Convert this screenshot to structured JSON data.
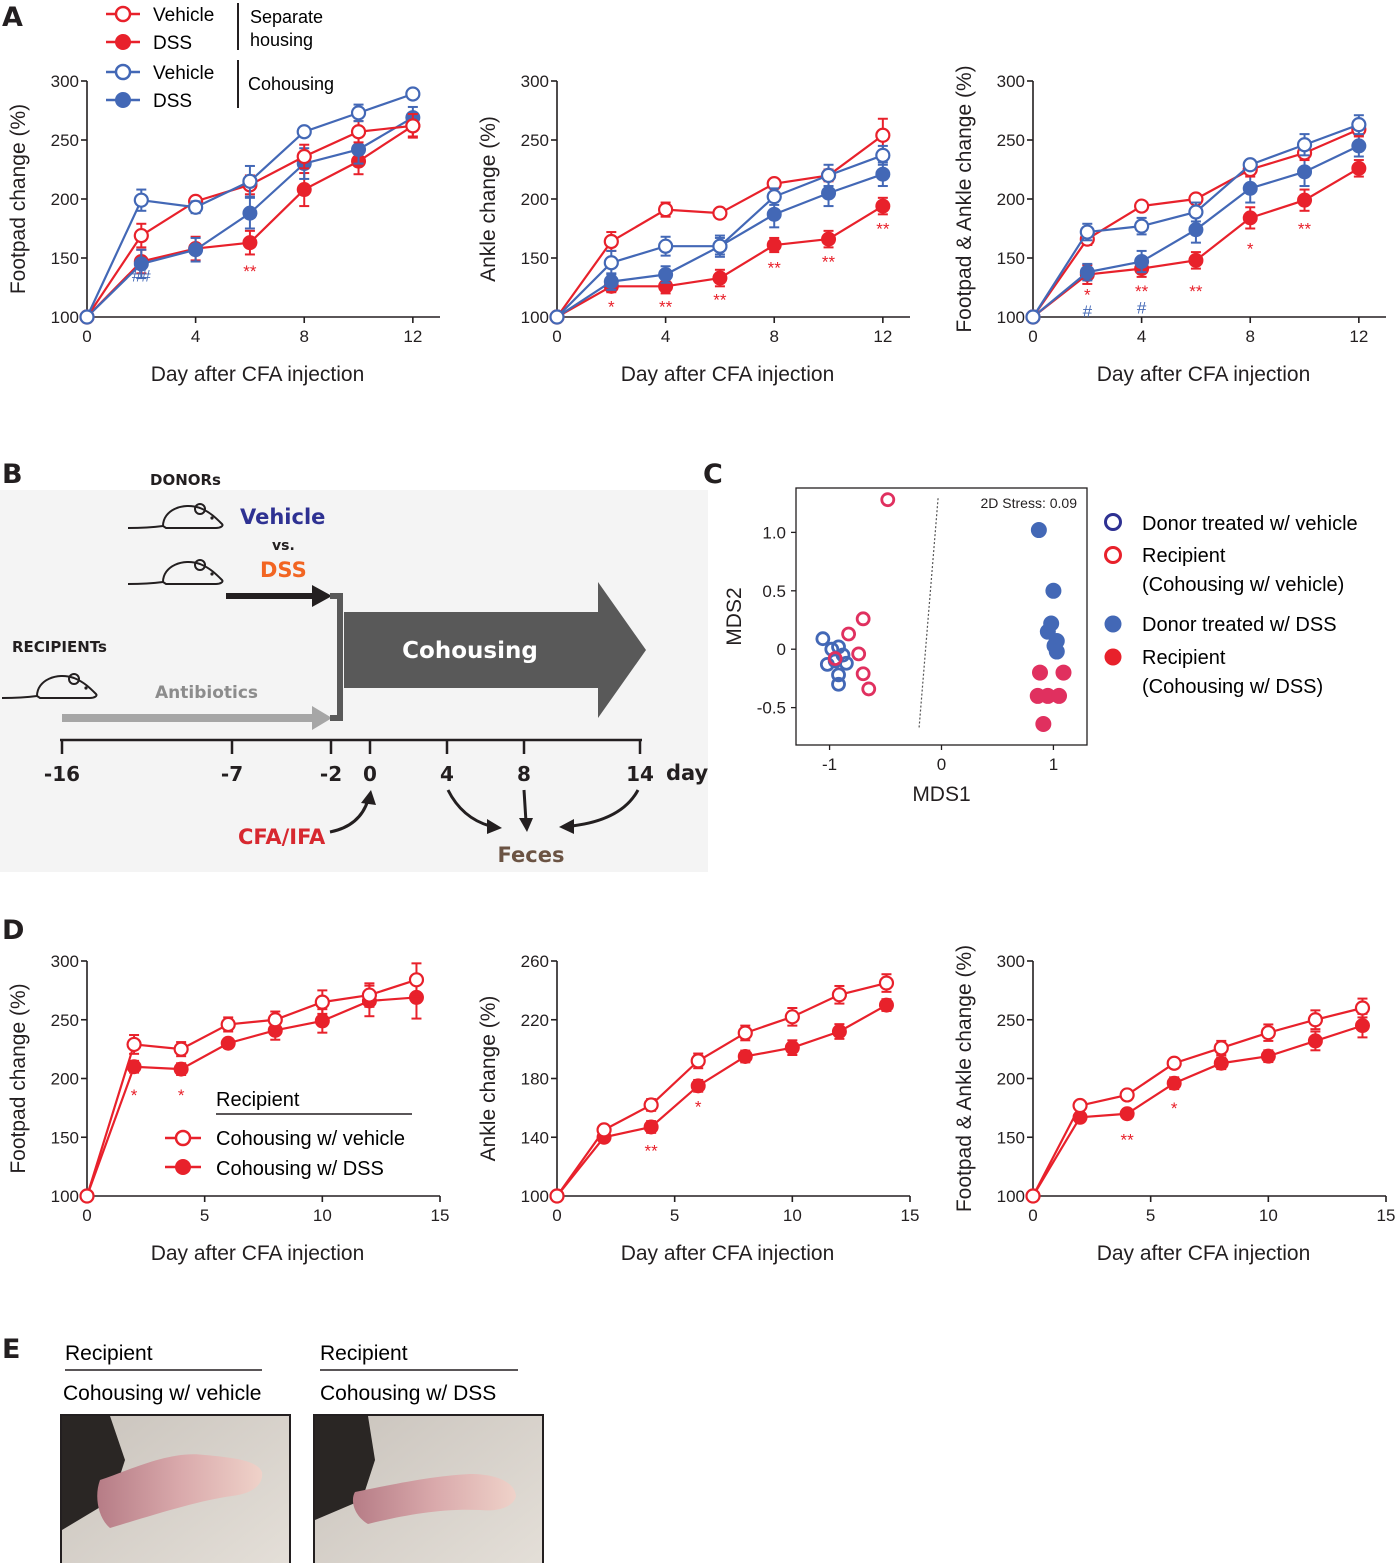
{
  "colors": {
    "red": "#e8212b",
    "blue": "#4368b6",
    "black": "#231f20",
    "grey": "#9a9a9a",
    "dark": "#595959",
    "panel_bg": "#f4f4f4",
    "donor_blue": "#2e3192",
    "dss_orange": "#f26522",
    "cfa_red": "#d7282f",
    "feces_brown": "#6b5343",
    "pink": "#e0305f"
  },
  "panel_labels": {
    "A": "A",
    "B": "B",
    "C": "C",
    "D": "D",
    "E": "E"
  },
  "chart_data": [
    {
      "id": "A1",
      "type": "line",
      "ylabel": "Footpad change (%)",
      "xlabel": "Day after CFA injection",
      "xlim": [
        0,
        13
      ],
      "ylim": [
        100,
        300
      ],
      "xticks": [
        0,
        4,
        8,
        12
      ],
      "yticks": [
        100,
        150,
        200,
        250,
        300
      ],
      "series": [
        {
          "name": "Vehicle (Separate housing)",
          "color": "red",
          "filled": false,
          "x": [
            0,
            2,
            4,
            6,
            8,
            10,
            12
          ],
          "y": [
            100,
            169,
            198,
            212,
            236,
            257,
            262
          ],
          "err": [
            0,
            10,
            4,
            8,
            10,
            9,
            10
          ]
        },
        {
          "name": "DSS (Separate housing)",
          "color": "red",
          "filled": true,
          "x": [
            0,
            2,
            4,
            6,
            8,
            10,
            12
          ],
          "y": [
            100,
            147,
            158,
            163,
            208,
            232,
            262
          ],
          "err": [
            0,
            10,
            10,
            10,
            14,
            11,
            9
          ]
        },
        {
          "name": "Vehicle (Cohousing)",
          "color": "blue",
          "filled": false,
          "x": [
            0,
            2,
            4,
            6,
            8,
            10,
            12
          ],
          "y": [
            100,
            199,
            193,
            215,
            257,
            273,
            289
          ],
          "err": [
            0,
            9,
            5,
            13,
            3,
            7,
            3
          ]
        },
        {
          "name": "DSS (Cohousing)",
          "color": "blue",
          "filled": true,
          "x": [
            0,
            2,
            4,
            6,
            8,
            10,
            12
          ],
          "y": [
            100,
            145,
            157,
            188,
            230,
            242,
            269
          ],
          "err": [
            0,
            12,
            10,
            13,
            13,
            12,
            9
          ]
        }
      ],
      "annotations": [
        {
          "x": 2,
          "y": 135,
          "text": "##",
          "color": "blue"
        },
        {
          "x": 6,
          "y": 139,
          "text": "**",
          "color": "red"
        }
      ]
    },
    {
      "id": "A2",
      "type": "line",
      "ylabel": "Ankle change (%)",
      "xlabel": "Day after CFA injection",
      "xlim": [
        0,
        13
      ],
      "ylim": [
        100,
        300
      ],
      "xticks": [
        0,
        4,
        8,
        12
      ],
      "yticks": [
        100,
        150,
        200,
        250,
        300
      ],
      "series": [
        {
          "name": "Vehicle (Separate housing)",
          "color": "red",
          "filled": false,
          "x": [
            0,
            2,
            4,
            6,
            8,
            10,
            12
          ],
          "y": [
            100,
            164,
            191,
            188,
            213,
            220,
            254
          ],
          "err": [
            0,
            8,
            6,
            3,
            3,
            5,
            14
          ]
        },
        {
          "name": "DSS (Separate housing)",
          "color": "red",
          "filled": true,
          "x": [
            0,
            2,
            4,
            6,
            8,
            10,
            12
          ],
          "y": [
            100,
            126,
            126,
            133,
            161,
            166,
            194
          ],
          "err": [
            0,
            5,
            6,
            7,
            6,
            7,
            7
          ]
        },
        {
          "name": "Vehicle (Cohousing)",
          "color": "blue",
          "filled": false,
          "x": [
            0,
            2,
            4,
            6,
            8,
            10,
            12
          ],
          "y": [
            100,
            146,
            160,
            160,
            202,
            220,
            237
          ],
          "err": [
            0,
            10,
            8,
            9,
            7,
            9,
            8
          ]
        },
        {
          "name": "DSS (Cohousing)",
          "color": "blue",
          "filled": true,
          "x": [
            0,
            2,
            4,
            6,
            8,
            10,
            12
          ],
          "y": [
            100,
            130,
            136,
            160,
            187,
            205,
            221
          ],
          "err": [
            0,
            7,
            7,
            7,
            11,
            11,
            10
          ]
        }
      ],
      "annotations": [
        {
          "x": 2,
          "y": 109,
          "text": "*",
          "color": "red"
        },
        {
          "x": 4,
          "y": 109,
          "text": "**",
          "color": "red"
        },
        {
          "x": 6,
          "y": 115,
          "text": "**",
          "color": "red"
        },
        {
          "x": 8,
          "y": 142,
          "text": "**",
          "color": "red"
        },
        {
          "x": 10,
          "y": 147,
          "text": "**",
          "color": "red"
        },
        {
          "x": 12,
          "y": 175,
          "text": "**",
          "color": "red"
        }
      ]
    },
    {
      "id": "A3",
      "type": "line",
      "ylabel": "Footpad  & Ankle change (%)",
      "xlabel": "Day after CFA injection",
      "xlim": [
        0,
        13
      ],
      "ylim": [
        100,
        300
      ],
      "xticks": [
        0,
        4,
        8,
        12
      ],
      "yticks": [
        100,
        150,
        200,
        250,
        300
      ],
      "series": [
        {
          "name": "Vehicle (Separate housing)",
          "color": "red",
          "filled": false,
          "x": [
            0,
            2,
            4,
            6,
            8,
            10,
            12
          ],
          "y": [
            100,
            166,
            194,
            200,
            225,
            239,
            259
          ],
          "err": [
            0,
            5,
            3,
            3,
            6,
            6,
            6
          ]
        },
        {
          "name": "DSS (Separate housing)",
          "color": "red",
          "filled": true,
          "x": [
            0,
            2,
            4,
            6,
            8,
            10,
            12
          ],
          "y": [
            100,
            136,
            141,
            148,
            184,
            199,
            226
          ],
          "err": [
            0,
            8,
            7,
            7,
            9,
            9,
            7
          ]
        },
        {
          "name": "Vehicle (Cohousing)",
          "color": "blue",
          "filled": false,
          "x": [
            0,
            2,
            4,
            6,
            8,
            10,
            12
          ],
          "y": [
            100,
            172,
            177,
            189,
            229,
            246,
            263
          ],
          "err": [
            0,
            7,
            7,
            8,
            4,
            9,
            8
          ]
        },
        {
          "name": "DSS (Cohousing)",
          "color": "blue",
          "filled": true,
          "x": [
            0,
            2,
            4,
            6,
            8,
            10,
            12
          ],
          "y": [
            100,
            138,
            147,
            174,
            209,
            223,
            245
          ],
          "err": [
            0,
            7,
            9,
            11,
            12,
            12,
            9
          ]
        }
      ],
      "annotations": [
        {
          "x": 2,
          "y": 119,
          "text": "*",
          "color": "red"
        },
        {
          "x": 2,
          "y": 105,
          "text": "#",
          "color": "blue"
        },
        {
          "x": 4,
          "y": 122,
          "text": "**",
          "color": "red"
        },
        {
          "x": 4,
          "y": 108,
          "text": "#",
          "color": "blue"
        },
        {
          "x": 6,
          "y": 122,
          "text": "**",
          "color": "red"
        },
        {
          "x": 8,
          "y": 158,
          "text": "*",
          "color": "red"
        },
        {
          "x": 10,
          "y": 175,
          "text": "**",
          "color": "red"
        }
      ]
    },
    {
      "id": "C",
      "type": "scatter",
      "xlabel": "MDS1",
      "ylabel": "MDS2",
      "title": "2D Stress: 0.09",
      "xlim": [
        -1.3,
        1.3
      ],
      "ylim": [
        -0.82,
        1.38
      ],
      "xticks": [
        -1,
        0,
        1
      ],
      "yticks": [
        1.0,
        0.5,
        0,
        -0.5
      ],
      "xtick_labels": [
        "-1",
        "0",
        "1"
      ],
      "ytick_labels": [
        "1.0",
        "0.5",
        "0",
        "-0.5"
      ],
      "divider": [
        [
          -0.2,
          -0.67
        ],
        [
          -0.03,
          1.3
        ]
      ],
      "series": [
        {
          "name": "Donor treated w/ vehicle",
          "color": "blue",
          "filled": false,
          "points": [
            [
              -1.06,
              0.09
            ],
            [
              -0.98,
              0.0
            ],
            [
              -0.92,
              0.02
            ],
            [
              -1.02,
              -0.13
            ],
            [
              -0.95,
              -0.1
            ],
            [
              -0.92,
              -0.22
            ],
            [
              -0.92,
              -0.3
            ],
            [
              -0.88,
              -0.05
            ],
            [
              -0.85,
              -0.12
            ]
          ]
        },
        {
          "name": "Recipient (Cohousing w/ vehicle)",
          "color": "pink",
          "filled": false,
          "points": [
            [
              -0.48,
              1.28
            ],
            [
              -0.83,
              0.13
            ],
            [
              -0.7,
              0.26
            ],
            [
              -0.74,
              -0.04
            ],
            [
              -0.7,
              -0.21
            ],
            [
              -0.65,
              -0.34
            ],
            [
              -0.95,
              -0.08
            ]
          ]
        },
        {
          "name": "Donor treated w/ DSS",
          "color": "blue",
          "filled": true,
          "points": [
            [
              0.87,
              1.02
            ],
            [
              1.0,
              0.5
            ],
            [
              0.98,
              0.22
            ],
            [
              0.95,
              0.15
            ],
            [
              1.03,
              0.07
            ],
            [
              1.01,
              0.03
            ],
            [
              1.03,
              -0.02
            ]
          ]
        },
        {
          "name": "Recipient (Cohousing w/ DSS)",
          "color": "pink",
          "filled": true,
          "points": [
            [
              0.86,
              -0.4
            ],
            [
              0.95,
              -0.4
            ],
            [
              1.05,
              -0.4
            ],
            [
              1.09,
              -0.2
            ],
            [
              0.88,
              -0.2
            ],
            [
              0.91,
              -0.64
            ]
          ]
        }
      ]
    },
    {
      "id": "D1",
      "type": "line",
      "ylabel": "Footpad change (%)",
      "xlabel": "Day after CFA injection",
      "xlim": [
        0,
        15
      ],
      "ylim": [
        100,
        300
      ],
      "xticks": [
        0,
        5,
        10,
        15
      ],
      "yticks": [
        100,
        150,
        200,
        250,
        300
      ],
      "series": [
        {
          "name": "Cohousing w/ vehicle",
          "color": "red",
          "filled": false,
          "x": [
            0,
            2,
            4,
            6,
            8,
            10,
            12,
            14
          ],
          "y": [
            100,
            229,
            225,
            246,
            250,
            265,
            271,
            284
          ],
          "err": [
            0,
            8,
            6,
            6,
            7,
            10,
            10,
            14
          ]
        },
        {
          "name": "Cohousing w/ DSS",
          "color": "red",
          "filled": true,
          "x": [
            0,
            2,
            4,
            6,
            8,
            10,
            12,
            14
          ],
          "y": [
            100,
            210,
            208,
            230,
            241,
            249,
            266,
            269
          ],
          "err": [
            0,
            5,
            5,
            4,
            8,
            10,
            13,
            18
          ]
        }
      ],
      "annotations": [
        {
          "x": 2,
          "y": 186,
          "text": "*",
          "color": "red"
        },
        {
          "x": 4,
          "y": 186,
          "text": "*",
          "color": "red"
        }
      ]
    },
    {
      "id": "D2",
      "type": "line",
      "ylabel": "Ankle change (%)",
      "xlabel": "Day after CFA injection",
      "xlim": [
        0,
        15
      ],
      "ylim": [
        100,
        260
      ],
      "xticks": [
        0,
        5,
        10,
        15
      ],
      "yticks": [
        100,
        140,
        180,
        220,
        260
      ],
      "series": [
        {
          "name": "Cohousing w/ vehicle",
          "color": "red",
          "filled": false,
          "x": [
            0,
            2,
            4,
            6,
            8,
            10,
            12,
            14
          ],
          "y": [
            100,
            145,
            162,
            192,
            211,
            222,
            237,
            245
          ],
          "err": [
            0,
            3,
            4,
            5,
            5,
            6,
            6,
            6
          ]
        },
        {
          "name": "Cohousing w/ DSS",
          "color": "red",
          "filled": true,
          "x": [
            0,
            2,
            4,
            6,
            8,
            10,
            12,
            14
          ],
          "y": [
            100,
            140,
            147,
            175,
            195,
            201,
            212,
            230
          ],
          "err": [
            0,
            3,
            4,
            4,
            4,
            5,
            5,
            4
          ]
        }
      ],
      "annotations": [
        {
          "x": 4,
          "y": 131,
          "text": "**",
          "color": "red"
        },
        {
          "x": 6,
          "y": 161,
          "text": "*",
          "color": "red"
        }
      ]
    },
    {
      "id": "D3",
      "type": "line",
      "ylabel": "Footpad & Ankle change (%)",
      "xlabel": "Day after CFA injection",
      "xlim": [
        0,
        15
      ],
      "ylim": [
        100,
        300
      ],
      "xticks": [
        0,
        5,
        10,
        15
      ],
      "yticks": [
        100,
        150,
        200,
        250,
        300
      ],
      "series": [
        {
          "name": "Cohousing w/ vehicle",
          "color": "red",
          "filled": false,
          "x": [
            0,
            2,
            4,
            6,
            8,
            10,
            12,
            14
          ],
          "y": [
            100,
            177,
            186,
            213,
            226,
            239,
            250,
            260
          ],
          "err": [
            0,
            3,
            4,
            4,
            6,
            7,
            8,
            8
          ]
        },
        {
          "name": "Cohousing w/ DSS",
          "color": "red",
          "filled": true,
          "x": [
            0,
            2,
            4,
            6,
            8,
            10,
            12,
            14
          ],
          "y": [
            100,
            167,
            170,
            196,
            213,
            219,
            232,
            245
          ],
          "err": [
            0,
            3,
            4,
            5,
            5,
            5,
            8,
            10
          ]
        }
      ],
      "annotations": [
        {
          "x": 4,
          "y": 148,
          "text": "**",
          "color": "red"
        },
        {
          "x": 6,
          "y": 175,
          "text": "*",
          "color": "red"
        }
      ]
    }
  ],
  "legend_a": {
    "vehicle": "Vehicle",
    "dss": "DSS",
    "separate_line1": "Separate",
    "separate_line2": "housing",
    "cohousing": "Cohousing"
  },
  "legend_c": {
    "item1": "Donor treated w/ vehicle",
    "item2_l1": "Recipient",
    "item2_l2": "(Cohousing w/ vehicle)",
    "item3": "Donor treated w/ DSS",
    "item4_l1": "Recipient",
    "item4_l2": "(Cohousing w/ DSS)"
  },
  "legend_d": {
    "title": "Recipient",
    "vehicle": "Cohousing w/ vehicle",
    "dss": "Cohousing w/ DSS"
  },
  "diagram_b": {
    "donors": "DONORs",
    "vehicle": "Vehicle",
    "vs": "vs.",
    "dss": "DSS",
    "recipients": "RECIPIENTs",
    "antibiotics": "Antibiotics",
    "cohousing": "Cohousing",
    "cfa": "CFA/IFA",
    "feces": "Feces",
    "day_unit": "day",
    "ticks": [
      "-16",
      "-7",
      "-2",
      "0",
      "4",
      "8",
      "14"
    ]
  },
  "panel_e": {
    "left_title": "Recipient",
    "left_sub": "Cohousing  w/ vehicle",
    "right_title": "Recipient",
    "right_sub": "Cohousing  w/ DSS"
  }
}
